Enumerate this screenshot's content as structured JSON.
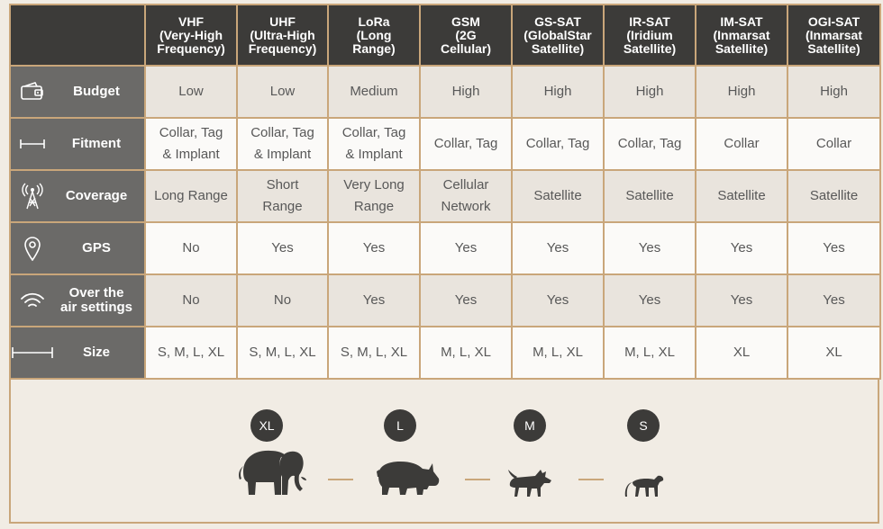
{
  "columns": [
    "VHF\n(Very-High\nFrequency)",
    "UHF\n(Ultra-High\nFrequency)",
    "LoRa\n(Long\nRange)",
    "GSM\n(2G\nCellular)",
    "GS-SAT\n(GlobalStar\nSatellite)",
    "IR-SAT\n(Iridium\nSatellite)",
    "IM-SAT\n(Inmarsat\nSatellite)",
    "OGI-SAT\n(Inmarsat\nSatellite)"
  ],
  "rows": [
    {
      "label": "Budget",
      "icon": "wallet-icon",
      "values": [
        "Low",
        "Low",
        "Medium",
        "High",
        "High",
        "High",
        "High",
        "High"
      ]
    },
    {
      "label": "Fitment",
      "icon": "measure-icon",
      "values": [
        "Collar, Tag\n& Implant",
        "Collar, Tag\n& Implant",
        "Collar, Tag\n& Implant",
        "Collar, Tag",
        "Collar, Tag",
        "Collar, Tag",
        "Collar",
        "Collar"
      ]
    },
    {
      "label": "Coverage",
      "icon": "antenna-tower-icon",
      "values": [
        "Long Range",
        "Short\nRange",
        "Very Long\nRange",
        "Cellular\nNetwork",
        "Satellite",
        "Satellite",
        "Satellite",
        "Satellite"
      ]
    },
    {
      "label": "GPS",
      "icon": "location-pin-icon",
      "values": [
        "No",
        "Yes",
        "Yes",
        "Yes",
        "Yes",
        "Yes",
        "Yes",
        "Yes"
      ]
    },
    {
      "label": "Over the\nair settings",
      "icon": "wifi-signal-icon",
      "values": [
        "No",
        "No",
        "Yes",
        "Yes",
        "Yes",
        "Yes",
        "Yes",
        "Yes"
      ]
    },
    {
      "label": "Size",
      "icon": "ruler-icon",
      "values": [
        "S, M, L, XL",
        "S, M, L, XL",
        "S, M, L, XL",
        "M, L, XL",
        "M, L, XL",
        "M, L, XL",
        "XL",
        "XL"
      ]
    }
  ],
  "sizes": [
    {
      "badge": "XL",
      "animal": "elephant-icon"
    },
    {
      "badge": "L",
      "animal": "rhino-icon"
    },
    {
      "badge": "M",
      "animal": "wild-dog-icon"
    },
    {
      "badge": "S",
      "animal": "monkey-icon"
    }
  ],
  "colors": {
    "header": "#3c3b39",
    "rowhead": "#6b6a68",
    "border": "#c9a67a",
    "band": "#e9e4dd",
    "light": "#fbfaf8"
  }
}
